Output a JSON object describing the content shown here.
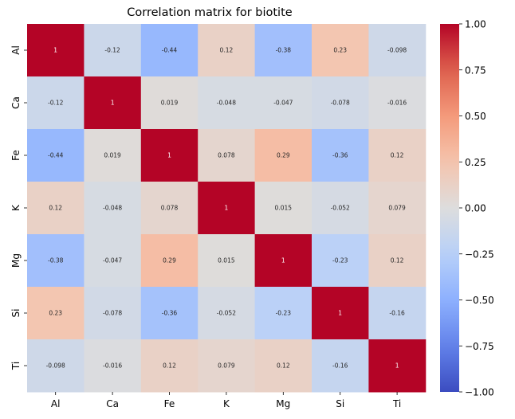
{
  "chart_data": {
    "type": "heatmap",
    "title": "Correlation matrix for biotite",
    "xlabel": "",
    "ylabel": "",
    "x_categories": [
      "Al",
      "Ca",
      "Fe",
      "K",
      "Mg",
      "Si",
      "Ti"
    ],
    "y_categories": [
      "Al",
      "Ca",
      "Fe",
      "K",
      "Mg",
      "Si",
      "Ti"
    ],
    "values": [
      [
        1,
        -0.12,
        -0.44,
        0.12,
        -0.38,
        0.23,
        -0.098
      ],
      [
        -0.12,
        1,
        0.019,
        -0.048,
        -0.047,
        -0.078,
        -0.016
      ],
      [
        -0.44,
        0.019,
        1,
        0.078,
        0.29,
        -0.36,
        0.12
      ],
      [
        0.12,
        -0.048,
        0.078,
        1,
        0.015,
        -0.052,
        0.079
      ],
      [
        -0.38,
        -0.047,
        0.29,
        0.015,
        1,
        -0.23,
        0.12
      ],
      [
        0.23,
        -0.078,
        -0.36,
        -0.052,
        -0.23,
        1,
        -0.16
      ],
      [
        -0.098,
        -0.016,
        0.12,
        0.079,
        0.12,
        -0.16,
        1
      ]
    ],
    "colormap": "coolwarm",
    "vmin": -1.0,
    "vmax": 1.0,
    "colorbar_ticks": [
      "1.00",
      "0.75",
      "0.50",
      "0.25",
      "0.00",
      "−0.25",
      "−0.50",
      "−0.75",
      "−1.00"
    ],
    "colorbar_tick_values": [
      1.0,
      0.75,
      0.5,
      0.25,
      0.0,
      -0.25,
      -0.5,
      -0.75,
      -1.0
    ],
    "colorbar": true,
    "annotations": true,
    "grid": false
  }
}
